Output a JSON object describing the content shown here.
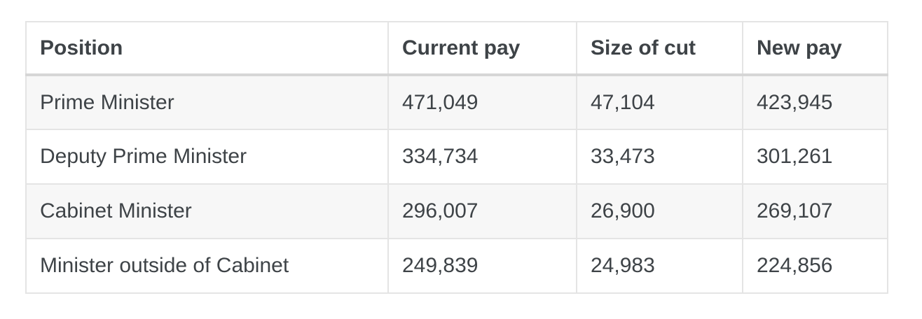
{
  "table": {
    "columns": [
      "Position",
      "Current pay",
      "Size of cut",
      "New pay"
    ],
    "rows": [
      [
        "Prime Minister",
        "471,049",
        "47,104",
        "423,945"
      ],
      [
        "Deputy Prime Minister",
        "334,734",
        "33,473",
        "301,261"
      ],
      [
        "Cabinet Minister",
        "296,007",
        "26,900",
        "269,107"
      ],
      [
        "Minister outside of Cabinet",
        "249,839",
        "24,983",
        "224,856"
      ]
    ]
  },
  "colors": {
    "text": "#3e4347",
    "border": "#e4e4e4",
    "header_underline": "#d6d6d6",
    "zebra_row_background": "#f7f7f7",
    "page_background": "#ffffff"
  }
}
